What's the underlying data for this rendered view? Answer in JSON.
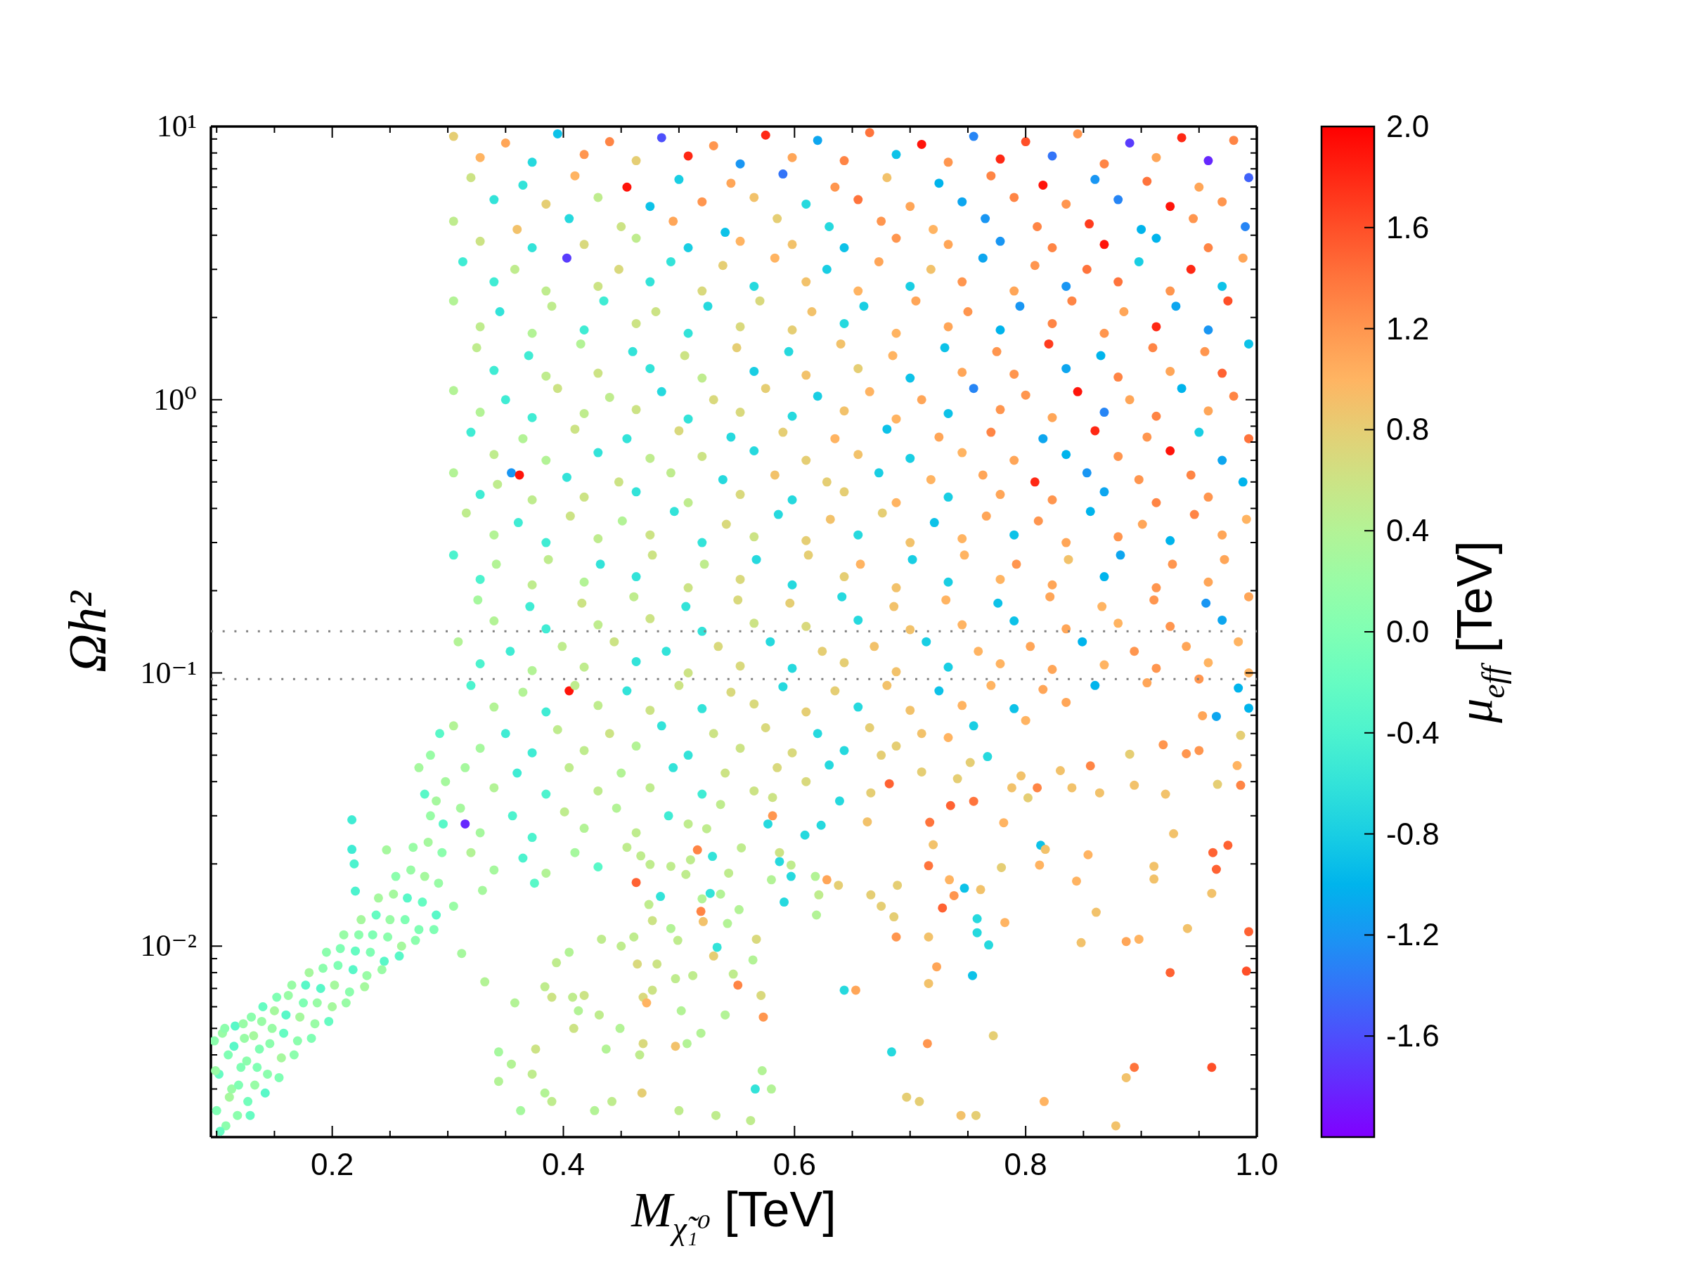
{
  "chart_data": {
    "type": "scatter",
    "xlabel": "M$_{χ̃₁⁰}$ [TeV]",
    "ylabel": "Ωh²",
    "clabel": "μ$_{eff}$ [TeV]",
    "log": "y",
    "marker": "circle",
    "xlim": [
      0.095,
      1.0
    ],
    "xticks": [
      {
        "value": 0.1,
        "label": null
      },
      {
        "value": 0.15,
        "label": null
      },
      0.2,
      {
        "value": 0.25,
        "label": null
      },
      {
        "value": 0.3,
        "label": null
      },
      {
        "value": 0.35,
        "label": null
      },
      0.4,
      {
        "value": 0.45,
        "label": null
      },
      {
        "value": 0.5,
        "label": null
      },
      {
        "value": 0.55,
        "label": null
      },
      0.6,
      {
        "value": 0.65,
        "label": null
      },
      {
        "value": 0.7,
        "label": null
      },
      {
        "value": 0.75,
        "label": null
      },
      0.8,
      {
        "value": 0.85,
        "label": null
      },
      {
        "value": 0.9,
        "label": null
      },
      {
        "value": 0.95,
        "label": null
      },
      {
        "value": 1.0,
        "label": "1.0"
      }
    ],
    "ylim": [
      0.002,
      10
    ],
    "yticks": [
      {
        "value": 0.003,
        "label": null
      },
      {
        "value": 0.004,
        "label": null
      },
      {
        "value": 0.005,
        "label": null
      },
      {
        "value": 0.006,
        "label": null
      },
      {
        "value": 0.007,
        "label": null
      },
      {
        "value": 0.008,
        "label": null
      },
      {
        "value": 0.009,
        "label": null
      },
      {
        "value": 0.01,
        "label": "10⁻²"
      },
      {
        "value": 0.02,
        "label": null
      },
      {
        "value": 0.03,
        "label": null
      },
      {
        "value": 0.04,
        "label": null
      },
      {
        "value": 0.05,
        "label": null
      },
      {
        "value": 0.06,
        "label": null
      },
      {
        "value": 0.07,
        "label": null
      },
      {
        "value": 0.08,
        "label": null
      },
      {
        "value": 0.09,
        "label": null
      },
      {
        "value": 0.1,
        "label": "10⁻¹"
      },
      {
        "value": 0.2,
        "label": null
      },
      {
        "value": 0.3,
        "label": null
      },
      {
        "value": 0.4,
        "label": null
      },
      {
        "value": 0.5,
        "label": null
      },
      {
        "value": 0.6,
        "label": null
      },
      {
        "value": 0.7,
        "label": null
      },
      {
        "value": 0.8,
        "label": null
      },
      {
        "value": 0.9,
        "label": null
      },
      {
        "value": 1,
        "label": "10⁰"
      },
      {
        "value": 2,
        "label": null
      },
      {
        "value": 3,
        "label": null
      },
      {
        "value": 4,
        "label": null
      },
      {
        "value": 5,
        "label": null
      },
      {
        "value": 6,
        "label": null
      },
      {
        "value": 7,
        "label": null
      },
      {
        "value": 8,
        "label": null
      },
      {
        "value": 9,
        "label": null
      },
      {
        "value": 10,
        "label": "10¹"
      }
    ],
    "clim": [
      -2.0,
      2.0
    ],
    "cticks": [
      {
        "value": -1.6,
        "label": "-1.6"
      },
      {
        "value": -1.2,
        "label": "-1.2"
      },
      {
        "value": -0.8,
        "label": "-0.8"
      },
      {
        "value": -0.4,
        "label": "-0.4"
      },
      {
        "value": 0,
        "label": "0.0"
      },
      {
        "value": 0.4,
        "label": "0.4"
      },
      {
        "value": 0.8,
        "label": "0.8"
      },
      {
        "value": 1.2,
        "label": "1.2"
      },
      {
        "value": 1.6,
        "label": "1.6"
      },
      {
        "value": 2.0,
        "label": "2.0"
      }
    ],
    "ref_lines": [
      {
        "axis": "y",
        "value": 0.142,
        "color": "#808080",
        "line_style": "dotted"
      },
      {
        "axis": "y",
        "value": 0.095,
        "color": "#808080",
        "line_style": "dotted"
      }
    ],
    "x": [
      0.098,
      0.1,
      0.102,
      0.105,
      0.108,
      0.11,
      0.113,
      0.116,
      0.118,
      0.121,
      0.124,
      0.127,
      0.13,
      0.133,
      0.137,
      0.14,
      0.144,
      0.148,
      0.152,
      0.156,
      0.16,
      0.165,
      0.17,
      0.175,
      0.18,
      0.185,
      0.19,
      0.195,
      0.2,
      0.205,
      0.21,
      0.215,
      0.22,
      0.225,
      0.23,
      0.235,
      0.24,
      0.245,
      0.25,
      0.255,
      0.26,
      0.265,
      0.27,
      0.275,
      0.28,
      0.285,
      0.29,
      0.295,
      0.298,
      0.217,
      0.217,
      0.219,
      0.22,
      0.247,
      0.275,
      0.28,
      0.285,
      0.29,
      0.293,
      0.315,
      0.405,
      0.355,
      0.362,
      0.305,
      0.35,
      0.395,
      0.44,
      0.485,
      0.53,
      0.575,
      0.62,
      0.665,
      0.71,
      0.755,
      0.8,
      0.845,
      0.89,
      0.935,
      0.98,
      0.32,
      0.365,
      0.41,
      0.455,
      0.5,
      0.545,
      0.59,
      0.635,
      0.68,
      0.725,
      0.77,
      0.815,
      0.86,
      0.905,
      0.95,
      0.993,
      0.305,
      0.36,
      0.405,
      0.45,
      0.495,
      0.54,
      0.585,
      0.63,
      0.675,
      0.72,
      0.765,
      0.81,
      0.855,
      0.9,
      0.945,
      0.99,
      0.313,
      0.358,
      0.403,
      0.448,
      0.493,
      0.538,
      0.583,
      0.628,
      0.673,
      0.718,
      0.763,
      0.808,
      0.853,
      0.898,
      0.943,
      0.988,
      0.305,
      0.345,
      0.39,
      0.435,
      0.48,
      0.525,
      0.57,
      0.615,
      0.66,
      0.705,
      0.75,
      0.795,
      0.84,
      0.885,
      0.93,
      0.975,
      0.325,
      0.37,
      0.415,
      0.46,
      0.505,
      0.55,
      0.595,
      0.64,
      0.685,
      0.73,
      0.775,
      0.82,
      0.865,
      0.91,
      0.955,
      0.993,
      0.305,
      0.35,
      0.395,
      0.44,
      0.485,
      0.53,
      0.575,
      0.62,
      0.665,
      0.71,
      0.755,
      0.8,
      0.845,
      0.89,
      0.935,
      0.98,
      0.32,
      0.365,
      0.41,
      0.455,
      0.5,
      0.545,
      0.59,
      0.635,
      0.68,
      0.725,
      0.77,
      0.815,
      0.86,
      0.905,
      0.95,
      0.993,
      0.305,
      0.343,
      0.403,
      0.448,
      0.493,
      0.538,
      0.583,
      0.628,
      0.673,
      0.718,
      0.763,
      0.808,
      0.853,
      0.898,
      0.943,
      0.988,
      0.316,
      0.361,
      0.406,
      0.451,
      0.496,
      0.541,
      0.586,
      0.631,
      0.676,
      0.721,
      0.766,
      0.811,
      0.856,
      0.901,
      0.946,
      0.991,
      0.305,
      0.342,
      0.387,
      0.432,
      0.477,
      0.522,
      0.567,
      0.612,
      0.657,
      0.702,
      0.747,
      0.792,
      0.837,
      0.882,
      0.927,
      0.972,
      0.326,
      0.371,
      0.416,
      0.461,
      0.506,
      0.551,
      0.596,
      0.641,
      0.686,
      0.731,
      0.776,
      0.821,
      0.866,
      0.911,
      0.956,
      0.993,
      0.309,
      0.354,
      0.399,
      0.444,
      0.489,
      0.534,
      0.579,
      0.624,
      0.669,
      0.714,
      0.759,
      0.804,
      0.849,
      0.894,
      0.939,
      0.984,
      0.32,
      0.365,
      0.41,
      0.455,
      0.5,
      0.545,
      0.59,
      0.635,
      0.68,
      0.725,
      0.77,
      0.815,
      0.86,
      0.905,
      0.95,
      0.993,
      0.305,
      0.35,
      0.395,
      0.44,
      0.485,
      0.53,
      0.575,
      0.62,
      0.665,
      0.71,
      0.755,
      0.8,
      0.315,
      0.36,
      0.405,
      0.45,
      0.495,
      0.54,
      0.585,
      0.63,
      0.675,
      0.311,
      0.356,
      0.401,
      0.446,
      0.491,
      0.536,
      0.581,
      0.32,
      0.365,
      0.41,
      0.455,
      0.33,
      0.375,
      0.305,
      0.332,
      0.312,
      0.358,
      0.344,
      0.344,
      0.355,
      0.363,
      0.373,
      0.376,
      0.384,
      0.39,
      0.384,
      0.39,
      0.394,
      0.405,
      0.408,
      0.413,
      0.409,
      0.431,
      0.427,
      0.437,
      0.442,
      0.418,
      0.433,
      0.45,
      0.449,
      0.463,
      0.464,
      0.468,
      0.469,
      0.469,
      0.481,
      0.477,
      0.461,
      0.484,
      0.516,
      0.529,
      0.474,
      0.493,
      0.499,
      0.497,
      0.512,
      0.477,
      0.472,
      0.502,
      0.54,
      0.519,
      0.507,
      0.497,
      0.466,
      0.5,
      0.532,
      0.562,
      0.58,
      0.572,
      0.566,
      0.573,
      0.571,
      0.564,
      0.567,
      0.547,
      0.551,
      0.53,
      0.533,
      0.542,
      0.552,
      0.521,
      0.527,
      0.536,
      0.52,
      0.519,
      0.543,
      0.506,
      0.587,
      0.597,
      0.591,
      0.597,
      0.587,
      0.58,
      0.628,
      0.638,
      0.618,
      0.621,
      0.619,
      0.643,
      0.653,
      0.666,
      0.675,
      0.686,
      0.689,
      0.688,
      0.684,
      0.697,
      0.708,
      0.715,
      0.716,
      0.716,
      0.723,
      0.716,
      0.717,
      0.72,
      0.735,
      0.728,
      0.738,
      0.734,
      0.747,
      0.761,
      0.758,
      0.758,
      0.768,
      0.754,
      0.782,
      0.772,
      0.744,
      0.757,
      0.755,
      0.767,
      0.781,
      0.779,
      0.788,
      0.796,
      0.81,
      0.802,
      0.813,
      0.817,
      0.812,
      0.816,
      0.84,
      0.83,
      0.856,
      0.854,
      0.844,
      0.861,
      0.848,
      0.864,
      0.878,
      0.887,
      0.898,
      0.887,
      0.894,
      0.894,
      0.89,
      0.911,
      0.911,
      0.921,
      0.919,
      0.925,
      0.928,
      0.94,
      0.939,
      0.95,
      0.953,
      0.961,
      0.961,
      0.962,
      0.965,
      0.975,
      0.965,
      0.983,
      0.986,
      0.986,
      0.966,
      0.993,
      0.993,
      0.991,
      0.984,
      0.682,
      0.71,
      0.741,
      0.752,
      0.666,
      0.663,
      0.639,
      0.623,
      0.609,
      0.581,
      0.577,
      0.554,
      0.524,
      0.493,
      0.51,
      0.475,
      0.467,
      0.328,
      0.373,
      0.418,
      0.463,
      0.508,
      0.553,
      0.598,
      0.643,
      0.688,
      0.733,
      0.778,
      0.823,
      0.868,
      0.913,
      0.958,
      0.34,
      0.385,
      0.43,
      0.475,
      0.52,
      0.565,
      0.61,
      0.655,
      0.7,
      0.745,
      0.79,
      0.835,
      0.88,
      0.925,
      0.97,
      0.328,
      0.373,
      0.418,
      0.463,
      0.508,
      0.553,
      0.598,
      0.643,
      0.688,
      0.733,
      0.778,
      0.823,
      0.868,
      0.913,
      0.958,
      0.34,
      0.385,
      0.43,
      0.475,
      0.52,
      0.565,
      0.61,
      0.655,
      0.7,
      0.745,
      0.79,
      0.835,
      0.88,
      0.925,
      0.97,
      0.328,
      0.373,
      0.418,
      0.463,
      0.508,
      0.553,
      0.598,
      0.643,
      0.688,
      0.733,
      0.778,
      0.823,
      0.868,
      0.913,
      0.958,
      0.34,
      0.385,
      0.43,
      0.475,
      0.52,
      0.565,
      0.61,
      0.655,
      0.7,
      0.745,
      0.79,
      0.835,
      0.88,
      0.925,
      0.97,
      0.328,
      0.373,
      0.418,
      0.463,
      0.508,
      0.553,
      0.598,
      0.643,
      0.688,
      0.733,
      0.778,
      0.823,
      0.868,
      0.913,
      0.958,
      0.34,
      0.385,
      0.43,
      0.475,
      0.52,
      0.565,
      0.61,
      0.655,
      0.7,
      0.745,
      0.79,
      0.835,
      0.88,
      0.925,
      0.97,
      0.328,
      0.373,
      0.418,
      0.463,
      0.508,
      0.553,
      0.598,
      0.643,
      0.688,
      0.733,
      0.778,
      0.823,
      0.868,
      0.913,
      0.958,
      0.34,
      0.385,
      0.43,
      0.475,
      0.52,
      0.565,
      0.61,
      0.655,
      0.7,
      0.745,
      0.79,
      0.835,
      0.88,
      0.925,
      0.97,
      0.328,
      0.373,
      0.418,
      0.463,
      0.508,
      0.553,
      0.598,
      0.643,
      0.688,
      0.733,
      0.778,
      0.823,
      0.868,
      0.913,
      0.958,
      0.34,
      0.385,
      0.43,
      0.475,
      0.52,
      0.565,
      0.61,
      0.655,
      0.7,
      0.745,
      0.79,
      0.835,
      0.88,
      0.925,
      0.97,
      0.328,
      0.373,
      0.418,
      0.463,
      0.508,
      0.553,
      0.598,
      0.643,
      0.688,
      0.733,
      0.778,
      0.823,
      0.868,
      0.913,
      0.958,
      0.34,
      0.385,
      0.43,
      0.475,
      0.52,
      0.565,
      0.61,
      0.655,
      0.7,
      0.745,
      0.79,
      0.835,
      0.328,
      0.373,
      0.418,
      0.463,
      0.508,
      0.553,
      0.598,
      0.643,
      0.688,
      0.733,
      0.34,
      0.385,
      0.43,
      0.475,
      0.52,
      0.565,
      0.61,
      0.328,
      0.373,
      0.418,
      0.463,
      0.508,
      0.34,
      0.385,
      0.43,
      0.099,
      0.103,
      0.107,
      0.111,
      0.115,
      0.119,
      0.123,
      0.126,
      0.129,
      0.132,
      0.135,
      0.139,
      0.142,
      0.146,
      0.15,
      0.154,
      0.158,
      0.162,
      0.167,
      0.172,
      0.177,
      0.182,
      0.187,
      0.192,
      0.197,
      0.202,
      0.207,
      0.212,
      0.218,
      0.223,
      0.228,
      0.233,
      0.238,
      0.243,
      0.248,
      0.253,
      0.258,
      0.263,
      0.268,
      0.272,
      0.278,
      0.283,
      0.288,
      0.292,
      0.296
    ],
    "values": [
      0.0045,
      0.0025,
      0.0034,
      0.0048,
      0.0022,
      0.004,
      0.003,
      0.0051,
      0.0024,
      0.0036,
      0.0046,
      0.0027,
      0.0055,
      0.0031,
      0.0042,
      0.006,
      0.0034,
      0.005,
      0.0065,
      0.0039,
      0.0056,
      0.0072,
      0.0045,
      0.0062,
      0.008,
      0.0052,
      0.007,
      0.0095,
      0.006,
      0.0085,
      0.011,
      0.0068,
      0.0096,
      0.0125,
      0.0078,
      0.011,
      0.015,
      0.0088,
      0.0125,
      0.018,
      0.01,
      0.015,
      0.023,
      0.0115,
      0.018,
      0.03,
      0.013,
      0.022,
      0.04,
      0.029,
      0.0226,
      0.02,
      0.0159,
      0.0225,
      0.045,
      0.036,
      0.05,
      0.034,
      0.06,
      0.028,
      0.086,
      0.54,
      0.53,
      9.2,
      8.7,
      9.4,
      8.8,
      9.1,
      8.5,
      9.3,
      8.9,
      9.5,
      8.6,
      9.2,
      8.8,
      9.4,
      8.7,
      9.1,
      8.9,
      6.5,
      6.1,
      6.6,
      6.0,
      6.4,
      6.2,
      6.7,
      6.0,
      6.5,
      6.2,
      6.6,
      6.1,
      6.4,
      6.3,
      6.0,
      6.5,
      4.5,
      4.2,
      4.6,
      4.3,
      4.5,
      4.1,
      4.6,
      4.3,
      4.5,
      4.2,
      4.6,
      4.3,
      4.4,
      4.2,
      4.6,
      4.3,
      3.2,
      3.0,
      3.3,
      3.0,
      3.2,
      3.1,
      3.3,
      3.0,
      3.2,
      3.0,
      3.3,
      3.1,
      3.0,
      3.2,
      3.0,
      3.3,
      2.3,
      2.1,
      2.2,
      2.3,
      2.1,
      2.2,
      2.3,
      2.1,
      2.2,
      2.3,
      2.1,
      2.2,
      2.3,
      2.1,
      2.2,
      2.3,
      1.55,
      1.45,
      1.6,
      1.5,
      1.45,
      1.55,
      1.5,
      1.6,
      1.45,
      1.55,
      1.5,
      1.6,
      1.45,
      1.55,
      1.5,
      1.6,
      1.08,
      1.0,
      1.1,
      1.02,
      1.07,
      1.0,
      1.1,
      1.03,
      1.07,
      1.0,
      1.1,
      1.04,
      1.07,
      1.0,
      1.1,
      1.03,
      0.76,
      0.72,
      0.78,
      0.72,
      0.77,
      0.73,
      0.76,
      0.72,
      0.78,
      0.73,
      0.76,
      0.72,
      0.77,
      0.73,
      0.76,
      0.72,
      0.54,
      0.49,
      0.52,
      0.5,
      0.54,
      0.51,
      0.53,
      0.5,
      0.54,
      0.51,
      0.53,
      0.5,
      0.54,
      0.51,
      0.53,
      0.5,
      0.385,
      0.355,
      0.375,
      0.36,
      0.39,
      0.35,
      0.38,
      0.365,
      0.385,
      0.355,
      0.375,
      0.36,
      0.39,
      0.35,
      0.38,
      0.365,
      0.27,
      0.25,
      0.26,
      0.25,
      0.27,
      0.25,
      0.26,
      0.27,
      0.25,
      0.26,
      0.27,
      0.25,
      0.26,
      0.27,
      0.25,
      0.26,
      0.185,
      0.175,
      0.18,
      0.19,
      0.175,
      0.185,
      0.18,
      0.19,
      0.175,
      0.185,
      0.18,
      0.19,
      0.175,
      0.185,
      0.18,
      0.19,
      0.13,
      0.12,
      0.125,
      0.13,
      0.12,
      0.125,
      0.13,
      0.12,
      0.125,
      0.13,
      0.12,
      0.125,
      0.13,
      0.12,
      0.125,
      0.13,
      0.09,
      0.085,
      0.09,
      0.086,
      0.09,
      0.085,
      0.089,
      0.086,
      0.09,
      0.086,
      0.09,
      0.087,
      0.09,
      0.092,
      0.095,
      0.1,
      0.064,
      0.06,
      0.062,
      0.06,
      0.064,
      0.06,
      0.063,
      0.06,
      0.063,
      0.06,
      0.064,
      0.067,
      0.045,
      0.043,
      0.045,
      0.043,
      0.045,
      0.043,
      0.045,
      0.046,
      0.05,
      0.032,
      0.03,
      0.031,
      0.032,
      0.03,
      0.033,
      0.035,
      0.022,
      0.021,
      0.022,
      0.023,
      0.016,
      0.017,
      0.014,
      0.0074,
      0.0094,
      0.0062,
      0.0041,
      0.0032,
      0.0037,
      0.0025,
      0.0034,
      0.0042,
      0.0071,
      0.0065,
      0.0029,
      0.0027,
      0.0087,
      0.0095,
      0.0065,
      0.0058,
      0.005,
      0.0056,
      0.0025,
      0.0042,
      0.0027,
      0.0066,
      0.0106,
      0.01,
      0.005,
      0.0171,
      0.0086,
      0.0029,
      0.0044,
      0.0065,
      0.0086,
      0.0124,
      0.0108,
      0.0152,
      0.0225,
      0.0213,
      0.0142,
      0.0116,
      0.0105,
      0.0076,
      0.0078,
      0.0069,
      0.0062,
      0.0058,
      0.0056,
      0.0048,
      0.0044,
      0.0043,
      0.004,
      0.0025,
      0.0024,
      0.0023,
      0.003,
      0.0035,
      0.003,
      0.0055,
      0.0066,
      0.0089,
      0.0106,
      0.0079,
      0.0072,
      0.0092,
      0.0099,
      0.0121,
      0.0136,
      0.0123,
      0.0156,
      0.0155,
      0.0149,
      0.0134,
      0.0185,
      0.0183,
      0.0204,
      0.018,
      0.0145,
      0.0198,
      0.022,
      0.0175,
      0.0175,
      0.0167,
      0.018,
      0.0154,
      0.013,
      0.0069,
      0.0069,
      0.0154,
      0.014,
      0.0128,
      0.0167,
      0.0108,
      0.0041,
      0.0028,
      0.0027,
      0.0044,
      0.0073,
      0.0108,
      0.0084,
      0.0197,
      0.0284,
      0.0235,
      0.0327,
      0.0138,
      0.0153,
      0.0175,
      0.0163,
      0.0161,
      0.0126,
      0.0112,
      0.0101,
      0.0078,
      0.0122,
      0.0047,
      0.0024,
      0.0024,
      0.0339,
      0.0494,
      0.0283,
      0.0194,
      0.038,
      0.042,
      0.038,
      0.0349,
      0.0234,
      0.0226,
      0.0198,
      0.0027,
      0.038,
      0.0439,
      0.0457,
      0.0216,
      0.0173,
      0.0133,
      0.0103,
      0.0364,
      0.0022,
      0.0104,
      0.0106,
      0.0033,
      0.0036,
      0.0388,
      0.0504,
      0.0196,
      0.0176,
      0.036,
      0.0546,
      0.008,
      0.0258,
      0.0116,
      0.0506,
      0.052,
      0.0697,
      0.0156,
      0.0036,
      0.022,
      0.0191,
      0.0234,
      0.0693,
      0.0458,
      0.0388,
      0.0591,
      0.0391,
      0.0743,
      0.0113,
      0.0081,
      0.088,
      0.0393,
      0.0434,
      0.041,
      0.047,
      0.0364,
      0.0285,
      0.034,
      0.0277,
      0.0255,
      0.03,
      0.028,
      0.0229,
      0.0269,
      0.0196,
      0.0207,
      0.0199,
      0.0214,
      7.7,
      7.4,
      7.9,
      7.5,
      7.8,
      7.3,
      7.7,
      7.5,
      7.9,
      7.4,
      7.6,
      7.8,
      7.3,
      7.7,
      7.5,
      5.4,
      5.2,
      5.5,
      5.1,
      5.3,
      5.5,
      5.2,
      5.4,
      5.1,
      5.3,
      5.5,
      5.2,
      5.4,
      5.1,
      5.3,
      3.8,
      3.6,
      3.7,
      3.9,
      3.6,
      3.8,
      3.7,
      3.6,
      3.9,
      3.7,
      3.8,
      3.6,
      3.7,
      3.9,
      3.6,
      2.7,
      2.5,
      2.6,
      2.7,
      2.5,
      2.6,
      2.7,
      2.5,
      2.6,
      2.7,
      2.5,
      2.6,
      2.7,
      2.5,
      2.6,
      1.85,
      1.75,
      1.8,
      1.9,
      1.75,
      1.85,
      1.8,
      1.9,
      1.75,
      1.85,
      1.8,
      1.9,
      1.75,
      1.85,
      1.8,
      1.28,
      1.22,
      1.25,
      1.3,
      1.2,
      1.27,
      1.23,
      1.3,
      1.2,
      1.26,
      1.24,
      1.3,
      1.21,
      1.27,
      1.25,
      0.9,
      0.86,
      0.89,
      0.92,
      0.85,
      0.9,
      0.87,
      0.91,
      0.85,
      0.89,
      0.92,
      0.86,
      0.9,
      0.87,
      0.91,
      0.63,
      0.6,
      0.64,
      0.61,
      0.62,
      0.65,
      0.6,
      0.63,
      0.61,
      0.64,
      0.6,
      0.63,
      0.62,
      0.65,
      0.6,
      0.45,
      0.43,
      0.44,
      0.46,
      0.42,
      0.45,
      0.43,
      0.46,
      0.42,
      0.44,
      0.45,
      0.43,
      0.46,
      0.42,
      0.44,
      0.32,
      0.3,
      0.31,
      0.32,
      0.3,
      0.315,
      0.305,
      0.32,
      0.3,
      0.31,
      0.32,
      0.3,
      0.315,
      0.305,
      0.32,
      0.22,
      0.21,
      0.215,
      0.225,
      0.205,
      0.22,
      0.21,
      0.225,
      0.205,
      0.215,
      0.22,
      0.21,
      0.225,
      0.205,
      0.215,
      0.155,
      0.145,
      0.15,
      0.158,
      0.142,
      0.152,
      0.148,
      0.156,
      0.144,
      0.15,
      0.155,
      0.145,
      0.152,
      0.148,
      0.156,
      0.108,
      0.102,
      0.105,
      0.11,
      0.1,
      0.106,
      0.104,
      0.109,
      0.101,
      0.105,
      0.108,
      0.103,
      0.107,
      0.104,
      0.109,
      0.075,
      0.072,
      0.076,
      0.073,
      0.074,
      0.077,
      0.072,
      0.075,
      0.073,
      0.076,
      0.074,
      0.078,
      0.053,
      0.051,
      0.052,
      0.054,
      0.05,
      0.053,
      0.051,
      0.052,
      0.054,
      0.058,
      0.038,
      0.036,
      0.037,
      0.038,
      0.036,
      0.037,
      0.04,
      0.026,
      0.025,
      0.027,
      0.026,
      0.028,
      0.019,
      0.0185,
      0.0195,
      0.0035,
      0.0021,
      0.005,
      0.0028,
      0.0043,
      0.0031,
      0.0052,
      0.0038,
      0.0024,
      0.0047,
      0.0036,
      0.0053,
      0.0029,
      0.0044,
      0.0058,
      0.0033,
      0.0048,
      0.0066,
      0.004,
      0.0055,
      0.0072,
      0.0046,
      0.0062,
      0.0083,
      0.0053,
      0.0072,
      0.0098,
      0.0062,
      0.0082,
      0.011,
      0.0071,
      0.0095,
      0.013,
      0.0082,
      0.0108,
      0.0155,
      0.0092,
      0.0125,
      0.019,
      0.0105,
      0.0145,
      0.024,
      0.0115,
      0.017,
      0.028
    ],
    "cvalues": [
      0.1,
      0,
      -0.2,
      0.2,
      0.1,
      0,
      0.2,
      -0.3,
      0.1,
      0,
      0.2,
      -0.1,
      0.1,
      0.2,
      0,
      -0.2,
      0.1,
      0.2,
      0,
      0.3,
      -0.3,
      0.2,
      0.1,
      0,
      0.3,
      0.2,
      -0.3,
      0.1,
      0.3,
      0,
      0.2,
      0.1,
      -0.2,
      0.3,
      0.2,
      0,
      0.3,
      -0.3,
      0.2,
      0.1,
      0.3,
      -0.3,
      0.2,
      0,
      0.3,
      0.2,
      -0.3,
      0.1,
      0.3,
      -0.5,
      -0.5,
      -0.4,
      -0.4,
      0.3,
      0.3,
      -0.3,
      0.2,
      0.3,
      -0.3,
      -1.8,
      1.9,
      -1.2,
      1.9,
      0.8,
      1.1,
      -0.9,
      1.3,
      -1.6,
      1.2,
      1.8,
      -1.1,
      1.4,
      1.9,
      -1.3,
      1.6,
      1.2,
      -1.7,
      1.8,
      1.3,
      0.6,
      -0.6,
      1.0,
      1.9,
      -0.8,
      1.1,
      -1.4,
      1.2,
      0.9,
      -1.0,
      1.3,
      1.9,
      -1.2,
      1.4,
      1.1,
      -1.5,
      0.5,
      0.9,
      -0.7,
      0.6,
      1.1,
      -0.9,
      0.8,
      -0.7,
      1.2,
      1.0,
      -1.2,
      1.3,
      1.7,
      -1.0,
      1.2,
      -1.3,
      -0.5,
      0.5,
      -1.7,
      0.7,
      -0.6,
      0.8,
      1.0,
      -0.8,
      1.1,
      0.9,
      -1.1,
      1.2,
      1.4,
      -0.8,
      1.8,
      1.1,
      0.4,
      -0.6,
      0.5,
      -0.5,
      0.6,
      -0.7,
      0.7,
      0.9,
      -0.8,
      1.1,
      1.2,
      -1.2,
      1.3,
      1.1,
      -1.1,
      1.6,
      0.5,
      -0.5,
      0.4,
      -0.6,
      0.6,
      0.8,
      -0.7,
      0.9,
      1.0,
      -0.9,
      1.2,
      1.7,
      -1.0,
      1.3,
      1.2,
      -0.9,
      0.4,
      -0.5,
      0.6,
      0.5,
      -0.7,
      0.7,
      0.8,
      -0.8,
      1.0,
      1.1,
      -1.3,
      1.2,
      1.9,
      1.1,
      -1.0,
      1.3,
      -0.5,
      0.4,
      0.6,
      -0.6,
      0.7,
      -0.7,
      0.8,
      1.0,
      -0.9,
      1.1,
      1.3,
      -1.1,
      1.8,
      1.2,
      -0.8,
      1.4,
      0.4,
      0.5,
      -0.6,
      0.6,
      0.5,
      -0.7,
      0.9,
      0.8,
      -0.8,
      1.0,
      1.1,
      1.8,
      -1.2,
      1.2,
      1.3,
      -1.0,
      0.5,
      -0.5,
      0.6,
      0.4,
      -0.6,
      0.7,
      -0.7,
      0.9,
      0.8,
      -0.9,
      1.1,
      1.2,
      -1.0,
      1.1,
      1.3,
      1.0,
      -0.4,
      0.4,
      0.5,
      -0.6,
      0.6,
      0.5,
      -0.7,
      0.8,
      1.0,
      -0.8,
      1.0,
      1.2,
      0.9,
      -1.1,
      1.2,
      1.1,
      0.3,
      -0.5,
      0.6,
      0.5,
      -0.6,
      0.7,
      0.8,
      -0.7,
      0.9,
      1.0,
      -0.9,
      1.1,
      1.0,
      1.2,
      -1.2,
      1.1,
      0.4,
      -0.5,
      0.5,
      0.6,
      -0.6,
      0.7,
      -0.7,
      0.8,
      0.9,
      -0.8,
      1.0,
      1.1,
      -1.0,
      1.2,
      1.1,
      1.0,
      -0.4,
      0.4,
      0.5,
      -0.6,
      0.6,
      0.7,
      -0.7,
      0.8,
      0.9,
      -0.9,
      1.0,
      1.1,
      -1.0,
      1.1,
      1.2,
      1.0,
      0.4,
      -0.5,
      0.5,
      0.6,
      -0.6,
      0.6,
      0.7,
      -0.7,
      0.8,
      0.9,
      -0.8,
      1.0,
      0.3,
      -0.5,
      0.5,
      0.4,
      -0.6,
      0.6,
      0.7,
      -0.7,
      0.8,
      0.3,
      -0.4,
      0.5,
      0.4,
      -0.5,
      0.5,
      0.6,
      0.4,
      -0.4,
      0.3,
      0.5,
      0.3,
      -0.3,
      0.2,
      0.4,
      0.3,
      0.4,
      0.3,
      0.4,
      0.4,
      0.3,
      0.5,
      0.6,
      0.5,
      0.6,
      0.4,
      0.5,
      0.5,
      0.4,
      0.5,
      0.4,
      0.6,
      0.5,
      0.4,
      0.4,
      0.5,
      0.6,
      0.5,
      0.5,
      0.4,
      1.5,
      0.7,
      0.8,
      0.7,
      0.7,
      0.6,
      0.6,
      0.5,
      -0.6,
      1.3,
      -0.6,
      0.5,
      0.4,
      0.5,
      0.5,
      0.5,
      0.6,
      1.0,
      0.4,
      0.4,
      0.4,
      0.4,
      0.9,
      0.5,
      0.5,
      0.5,
      0.5,
      0.4,
      0.4,
      -0.6,
      1.2,
      0.7,
      0.4,
      0.7,
      0.5,
      1.3,
      0.8,
      -0.6,
      0.4,
      0.4,
      0.9,
      -0.6,
      0.4,
      0.4,
      1.3,
      0.5,
      0.5,
      -0.7,
      -0.7,
      -0.7,
      0.5,
      0.6,
      0.4,
      1.1,
      0.8,
      0.4,
      0.5,
      0.4,
      -0.7,
      1.1,
      0.8,
      0.8,
      0.8,
      0.8,
      1.2,
      -0.7,
      0.8,
      0.8,
      1.2,
      0.9,
      0.9,
      1.1,
      1.4,
      1.4,
      0.9,
      1.5,
      1.5,
      1.2,
      1.0,
      -0.9,
      0.9,
      -0.7,
      -0.7,
      -0.7,
      -0.9,
      1.0,
      0.8,
      0.9,
      0.8,
      1.4,
      -0.7,
      1.0,
      0.8,
      0.9,
      0.9,
      1.3,
      0.8,
      -0.9,
      0.9,
      1.0,
      1.0,
      0.9,
      0.9,
      1.3,
      1.0,
      1.0,
      0.9,
      0.9,
      0.9,
      0.9,
      1.1,
      1.0,
      0.9,
      1.4,
      0.9,
      0.8,
      0.9,
      0.9,
      0.9,
      1.2,
      1.5,
      0.9,
      0.9,
      1.2,
      1.2,
      1.1,
      0.9,
      1.6,
      1.5,
      1.5,
      1.5,
      -1.1,
      1.0,
      1.3,
      0.8,
      0.8,
      -1.0,
      1.5,
      1.6,
      -1.0,
      1.5,
      0.8,
      0.8,
      0.8,
      0.8,
      0.9,
      -0.7,
      -0.7,
      -0.7,
      1.2,
      -0.7,
      0.5,
      0.5,
      0.5,
      0.5,
      0.5,
      0.5,
      1.0,
      -0.7,
      1.2,
      0.8,
      1.8,
      -1.2,
      1.1,
      1.3,
      -0.9,
      1.2,
      1.8,
      -1.4,
      1.3,
      1.1,
      -1.8,
      -0.6,
      0.8,
      0.5,
      -0.9,
      1.2,
      0.9,
      -0.7,
      1.4,
      1.1,
      -1.1,
      1.3,
      1.2,
      -1.3,
      1.9,
      1.2,
      0.6,
      -0.6,
      0.7,
      0.5,
      -0.8,
      1.0,
      0.9,
      -0.9,
      1.2,
      1.1,
      -1.2,
      1.3,
      1.9,
      -1.0,
      1.3,
      -0.5,
      0.5,
      0.6,
      -0.6,
      0.7,
      -0.7,
      0.9,
      1.0,
      -0.8,
      1.2,
      1.1,
      -1.2,
      1.4,
      1.2,
      -0.9,
      0.5,
      0.4,
      -0.5,
      0.6,
      -0.6,
      0.7,
      0.8,
      -0.7,
      1.0,
      1.1,
      -1.0,
      1.3,
      1.2,
      1.8,
      -1.2,
      -0.5,
      0.5,
      0.6,
      -0.6,
      0.5,
      -0.8,
      0.9,
      0.8,
      -0.9,
      1.1,
      1.2,
      -1.1,
      1.3,
      1.1,
      1.5,
      0.4,
      -0.5,
      0.5,
      0.6,
      -0.6,
      0.7,
      -0.7,
      0.9,
      1.0,
      -0.9,
      1.2,
      1.1,
      -1.3,
      1.3,
      1.1,
      0.5,
      0.4,
      -0.6,
      0.5,
      0.6,
      -0.7,
      0.8,
      0.9,
      -0.8,
      1.0,
      1.1,
      -1.0,
      1.2,
      1.9,
      -1.1,
      -0.5,
      0.5,
      0.6,
      -0.6,
      0.5,
      0.7,
      -0.7,
      0.8,
      1.0,
      -0.8,
      1.1,
      1.2,
      -1.1,
      1.3,
      1.2,
      0.4,
      -0.5,
      0.5,
      0.6,
      -0.6,
      0.6,
      0.8,
      -0.7,
      0.9,
      1.0,
      -0.9,
      1.1,
      1.2,
      -1.0,
      1.1,
      -0.4,
      0.5,
      0.4,
      -0.6,
      0.6,
      0.7,
      -0.7,
      0.8,
      0.9,
      -0.8,
      1.0,
      1.1,
      -1.0,
      1.2,
      1.1,
      0.4,
      -0.5,
      0.5,
      0.6,
      -0.6,
      0.6,
      0.7,
      -0.7,
      0.9,
      1.0,
      -0.9,
      1.1,
      1.0,
      1.2,
      -1.1,
      -0.4,
      0.4,
      0.5,
      -0.6,
      0.6,
      0.7,
      -0.7,
      0.8,
      0.9,
      -0.8,
      1.0,
      1.1,
      1.0,
      1.2,
      1.0,
      0.4,
      -0.5,
      0.5,
      0.6,
      -0.6,
      0.7,
      0.8,
      -0.7,
      0.9,
      1.0,
      -0.9,
      1.1,
      0.3,
      -0.5,
      0.5,
      0.4,
      -0.6,
      0.6,
      0.7,
      -0.7,
      0.8,
      1.0,
      0.4,
      -0.4,
      0.5,
      0.5,
      -0.5,
      0.6,
      0.7,
      0.3,
      -0.4,
      0.4,
      0.5,
      0.5,
      0.3,
      0.4,
      -0.3,
      0.2,
      -0.2,
      0.1,
      0.3,
      -0.3,
      0.0,
      0.2,
      0.1,
      -0.2,
      0.3,
      0.0,
      0.2,
      -0.3,
      0.1,
      0.3,
      0.0,
      -0.2,
      0.2,
      0.1,
      0.3,
      -0.3,
      0.0,
      0.2,
      0.1,
      -0.2,
      0.3,
      0.0,
      0.2,
      -0.3,
      0.1,
      0.3,
      0.0,
      -0.2,
      0.2,
      0.1,
      0.3,
      -0.3,
      0.0,
      0.2,
      0.1,
      -0.2,
      0.3,
      0.0,
      0.2,
      -0.3
    ]
  }
}
